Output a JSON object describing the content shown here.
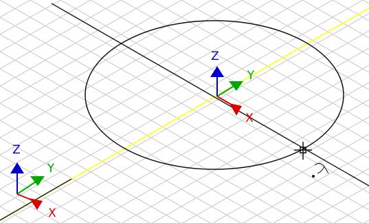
{
  "gizmos": [
    {
      "z": "Z",
      "y": "Y",
      "x": "X"
    },
    {
      "z": "Z",
      "y": "Y",
      "x": "X"
    }
  ]
}
